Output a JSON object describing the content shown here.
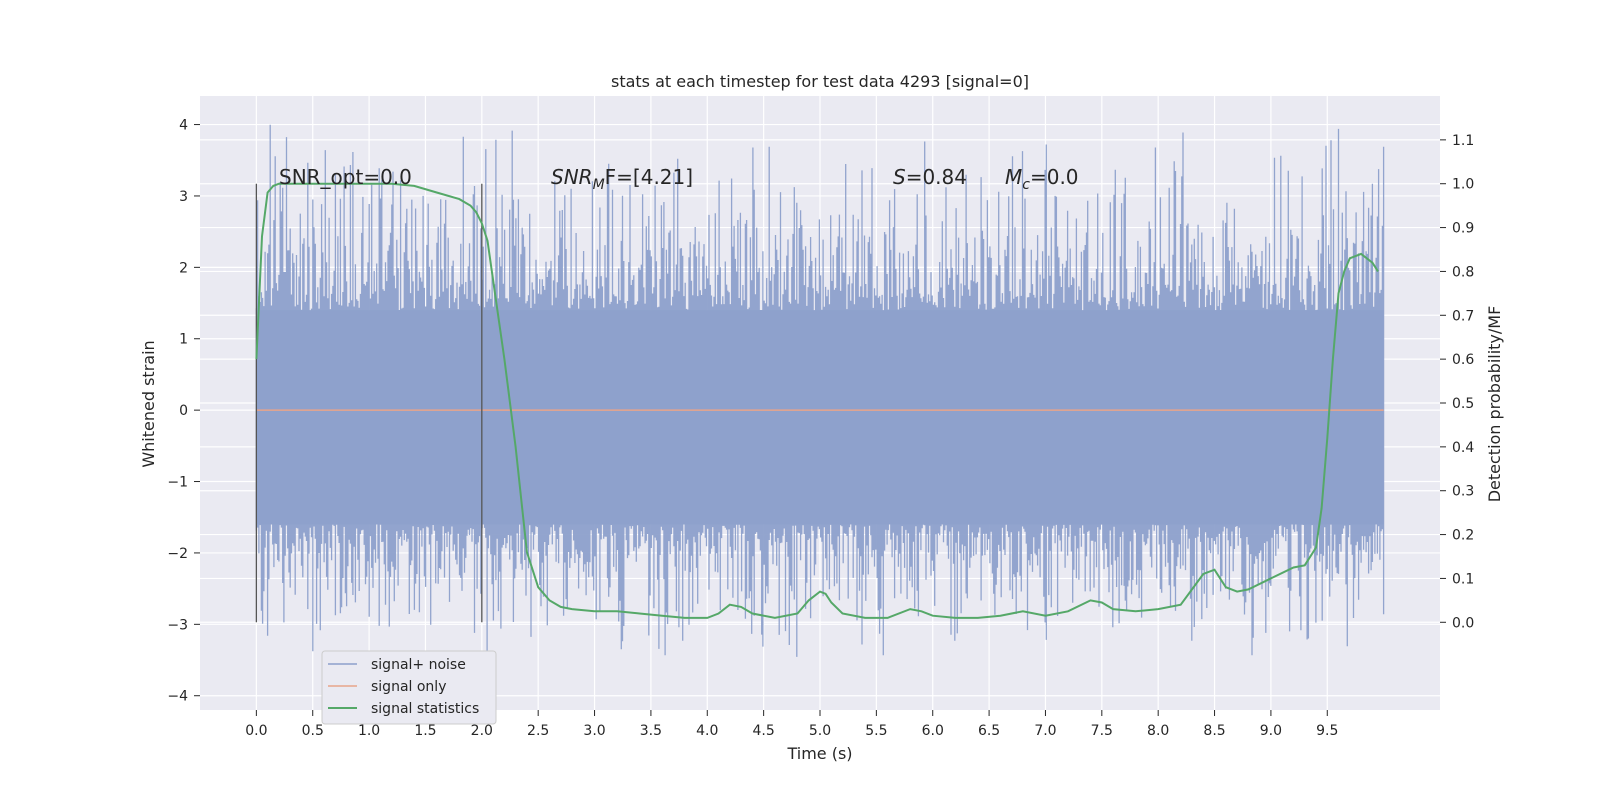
{
  "chart_data": {
    "type": "line",
    "title": "stats at each timestep for test data 4293 [signal=0]",
    "xlabel": "Time (s)",
    "ylabel_left": "Whitened strain",
    "ylabel_right": "Detection probability/MF",
    "xlim": [
      -0.5,
      10.5
    ],
    "ylim_left": [
      -4.2,
      4.4
    ],
    "ylim_right": [
      -0.2,
      1.2
    ],
    "x_ticks": [
      "0.0",
      "0.5",
      "1.0",
      "1.5",
      "2.0",
      "2.5",
      "3.0",
      "3.5",
      "4.0",
      "4.5",
      "5.0",
      "5.5",
      "6.0",
      "6.5",
      "7.0",
      "7.5",
      "8.0",
      "8.5",
      "9.0",
      "9.5"
    ],
    "x_tick_values": [
      0.0,
      0.5,
      1.0,
      1.5,
      2.0,
      2.5,
      3.0,
      3.5,
      4.0,
      4.5,
      5.0,
      5.5,
      6.0,
      6.5,
      7.0,
      7.5,
      8.0,
      8.5,
      9.0,
      9.5
    ],
    "y_left_ticks": [
      "4",
      "3",
      "2",
      "1",
      "0",
      "−1",
      "−2",
      "−3",
      "−4"
    ],
    "y_left_tick_values": [
      4,
      3,
      2,
      1,
      0,
      -1,
      -2,
      -3,
      -4
    ],
    "y_right_ticks": [
      "1.1",
      "1.0",
      "0.9",
      "0.8",
      "0.7",
      "0.6",
      "0.5",
      "0.4",
      "0.3",
      "0.2",
      "0.1",
      "0.0"
    ],
    "y_right_tick_values": [
      1.1,
      1.0,
      0.9,
      0.8,
      0.7,
      0.6,
      0.5,
      0.4,
      0.3,
      0.2,
      0.1,
      0.0
    ],
    "grid": true,
    "legend_position": "lower-left",
    "annotations": {
      "snr_opt": "SNR_opt=0.0",
      "snr_mf_main": "SNR",
      "snr_mf_sub": "M",
      "snr_mf_rest": "F=[4.21]",
      "s_var": "S",
      "s_val": "=0.84",
      "mc_var": "M",
      "mc_sub": "c",
      "mc_val": "=0.0"
    },
    "window_markers_x": [
      0.0,
      2.0
    ],
    "series": [
      {
        "name": "signal+ noise",
        "axis": "left",
        "color": "#8da0cb",
        "x_range": [
          0.0,
          10.0
        ],
        "envelope_core": [
          -1.6,
          1.4
        ],
        "envelope_peak": [
          -3.6,
          4.05
        ]
      },
      {
        "name": "signal only",
        "axis": "left",
        "color": "#e8a48a",
        "x": [
          0.0,
          10.0
        ],
        "y": [
          0.0,
          0.0
        ]
      },
      {
        "name": "signal statistics",
        "axis": "right",
        "color": "#55a868",
        "x": [
          0.0,
          0.05,
          0.1,
          0.15,
          0.2,
          0.3,
          0.5,
          0.8,
          1.0,
          1.2,
          1.4,
          1.6,
          1.8,
          1.9,
          1.95,
          2.0,
          2.05,
          2.1,
          2.2,
          2.3,
          2.4,
          2.5,
          2.6,
          2.7,
          2.8,
          3.0,
          3.2,
          3.4,
          3.6,
          3.8,
          4.0,
          4.1,
          4.2,
          4.3,
          4.4,
          4.6,
          4.8,
          4.9,
          5.0,
          5.05,
          5.1,
          5.2,
          5.4,
          5.6,
          5.8,
          5.9,
          6.0,
          6.2,
          6.4,
          6.6,
          6.8,
          7.0,
          7.2,
          7.4,
          7.5,
          7.6,
          7.8,
          8.0,
          8.2,
          8.4,
          8.5,
          8.6,
          8.7,
          8.8,
          9.0,
          9.2,
          9.3,
          9.4,
          9.45,
          9.5,
          9.55,
          9.6,
          9.65,
          9.7,
          9.8,
          9.9,
          9.95
        ],
        "y": [
          0.6,
          0.88,
          0.98,
          0.995,
          1.0,
          1.0,
          1.0,
          1.0,
          1.0,
          1.0,
          0.995,
          0.98,
          0.965,
          0.95,
          0.935,
          0.91,
          0.87,
          0.78,
          0.6,
          0.4,
          0.16,
          0.08,
          0.05,
          0.035,
          0.03,
          0.025,
          0.025,
          0.02,
          0.015,
          0.01,
          0.01,
          0.02,
          0.04,
          0.035,
          0.02,
          0.01,
          0.02,
          0.05,
          0.07,
          0.065,
          0.045,
          0.02,
          0.01,
          0.01,
          0.03,
          0.025,
          0.015,
          0.01,
          0.01,
          0.015,
          0.025,
          0.015,
          0.025,
          0.05,
          0.045,
          0.03,
          0.025,
          0.03,
          0.04,
          0.11,
          0.12,
          0.08,
          0.07,
          0.075,
          0.1,
          0.125,
          0.13,
          0.17,
          0.26,
          0.42,
          0.6,
          0.75,
          0.8,
          0.83,
          0.84,
          0.82,
          0.8
        ]
      }
    ]
  }
}
